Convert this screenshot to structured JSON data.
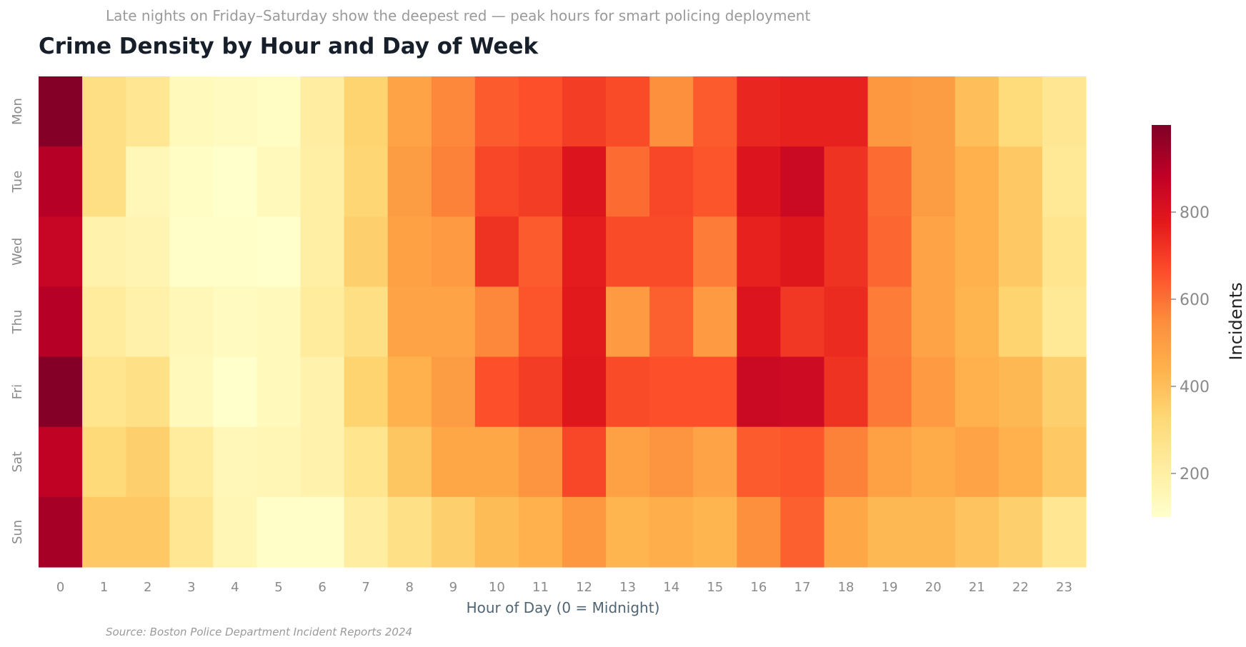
{
  "subtitle": "Late nights on Friday–Saturday show the deepest red — peak hours for smart policing deployment",
  "source": "Source: Boston Police Department Incident Reports 2024",
  "chart_data": {
    "type": "heatmap",
    "title": "Crime Density by Hour and Day of Week",
    "xlabel": "Hour of Day (0 = Midnight)",
    "ylabel": "",
    "x": [
      "0",
      "1",
      "2",
      "3",
      "4",
      "5",
      "6",
      "7",
      "8",
      "9",
      "10",
      "11",
      "12",
      "13",
      "14",
      "15",
      "16",
      "17",
      "18",
      "19",
      "20",
      "21",
      "22",
      "23"
    ],
    "y": [
      "Mon",
      "Tue",
      "Wed",
      "Thu",
      "Fri",
      "Sat",
      "Sun"
    ],
    "values": [
      [
        990,
        290,
        250,
        140,
        130,
        120,
        210,
        340,
        480,
        560,
        640,
        660,
        700,
        670,
        540,
        640,
        750,
        760,
        760,
        520,
        500,
        400,
        310,
        250
      ],
      [
        900,
        290,
        150,
        120,
        100,
        140,
        200,
        330,
        500,
        570,
        680,
        700,
        800,
        610,
        680,
        650,
        800,
        850,
        720,
        610,
        500,
        440,
        370,
        240
      ],
      [
        860,
        180,
        170,
        110,
        110,
        100,
        200,
        350,
        490,
        510,
        720,
        640,
        770,
        670,
        670,
        580,
        760,
        790,
        720,
        620,
        480,
        440,
        370,
        260
      ],
      [
        900,
        220,
        190,
        150,
        130,
        140,
        220,
        290,
        480,
        480,
        560,
        650,
        780,
        510,
        630,
        510,
        800,
        710,
        740,
        580,
        480,
        430,
        340,
        240
      ],
      [
        990,
        260,
        280,
        140,
        100,
        140,
        180,
        340,
        440,
        500,
        660,
        700,
        790,
        670,
        660,
        660,
        850,
        840,
        720,
        590,
        510,
        440,
        420,
        350
      ],
      [
        880,
        320,
        350,
        220,
        150,
        160,
        180,
        260,
        380,
        470,
        470,
        530,
        680,
        490,
        530,
        480,
        640,
        650,
        570,
        490,
        460,
        480,
        440,
        370
      ],
      [
        930,
        370,
        370,
        250,
        160,
        110,
        110,
        210,
        280,
        350,
        410,
        440,
        520,
        430,
        450,
        430,
        540,
        630,
        470,
        420,
        420,
        390,
        350,
        250
      ]
    ],
    "colorbar": {
      "label": "Incidents",
      "min": 100,
      "max": 1000,
      "ticks": [
        200,
        400,
        600,
        800
      ]
    }
  }
}
